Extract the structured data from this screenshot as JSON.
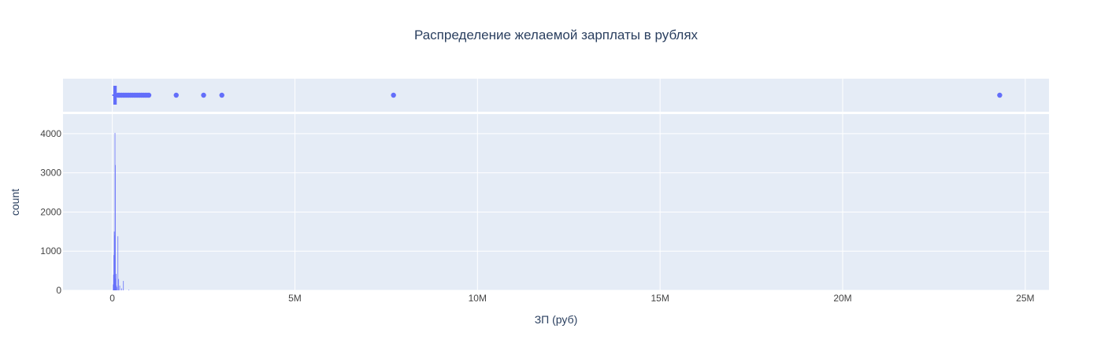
{
  "chart_data": {
    "type": "histogram",
    "title": "Распределение желаемой зарплаты в рублях",
    "xlabel": "ЗП (руб)",
    "ylabel": "count",
    "xlim": [
      -1350000,
      25650000
    ],
    "ylim": [
      0,
      4500
    ],
    "xticks": [
      0,
      5000000,
      10000000,
      15000000,
      20000000,
      25000000
    ],
    "xtick_labels": [
      "0",
      "5M",
      "10M",
      "15M",
      "20M",
      "25M"
    ],
    "yticks": [
      0,
      1000,
      2000,
      3000,
      4000
    ],
    "ytick_labels": [
      "0",
      "1000",
      "2000",
      "3000",
      "4000"
    ],
    "grid": true,
    "legend": "none",
    "colors": {
      "bars": "#636efa",
      "plot_bg": "#e5ecf6",
      "grid": "#ffffff",
      "text": "#2a3f5f",
      "ticktext": "#444444"
    },
    "histogram": {
      "bin_width": 10000,
      "bins": [
        {
          "x": 20000,
          "count": 150
        },
        {
          "x": 30000,
          "count": 400
        },
        {
          "x": 40000,
          "count": 900
        },
        {
          "x": 50000,
          "count": 1500
        },
        {
          "x": 60000,
          "count": 1400
        },
        {
          "x": 70000,
          "count": 4020
        },
        {
          "x": 80000,
          "count": 3200
        },
        {
          "x": 90000,
          "count": 300
        },
        {
          "x": 100000,
          "count": 420
        },
        {
          "x": 110000,
          "count": 120
        },
        {
          "x": 120000,
          "count": 80
        },
        {
          "x": 150000,
          "count": 1380
        },
        {
          "x": 170000,
          "count": 290
        },
        {
          "x": 200000,
          "count": 120
        },
        {
          "x": 250000,
          "count": 50
        },
        {
          "x": 300000,
          "count": 240
        },
        {
          "x": 450000,
          "count": 15
        }
      ]
    },
    "marginal_box": {
      "q1": 50000,
      "median": 70000,
      "q3": 100000,
      "lower_fence": 0,
      "upper_fence": 150000,
      "outliers": [
        160000,
        200000,
        250000,
        300000,
        350000,
        400000,
        450000,
        500000,
        550000,
        600000,
        650000,
        700000,
        750000,
        800000,
        850000,
        900000,
        950000,
        1000000,
        1750000,
        2500000,
        3000000,
        7700000,
        24300000
      ]
    }
  }
}
